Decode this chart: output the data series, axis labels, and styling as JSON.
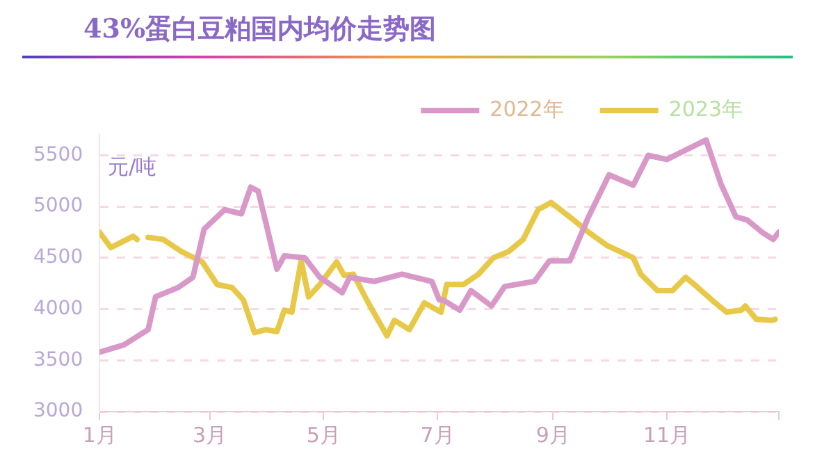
{
  "chart_data": {
    "type": "line",
    "title": "43%蛋白豆粕国内均价走势图",
    "ylabel": "元/吨",
    "xlim": [
      "--01-01",
      "--12-31"
    ],
    "xticks": [
      {
        "value": "--01-01",
        "label": "1月"
      },
      {
        "value": "--03-01",
        "label": "3月"
      },
      {
        "value": "--05-01",
        "label": "5月"
      },
      {
        "value": "--07-01",
        "label": "7月"
      },
      {
        "value": "--09-01",
        "label": "9月"
      },
      {
        "value": "--11-01",
        "label": "11月"
      },
      {
        "value": "--12-31",
        "label": null
      }
    ],
    "ylim": [
      3000,
      5700
    ],
    "yticks": [
      3000,
      3500,
      4000,
      4500,
      5000,
      5500
    ],
    "grid": "y",
    "legend": "top right",
    "marker": "none",
    "line_style": "solid",
    "series": [
      {
        "name": "2022年",
        "color": "#d898c8",
        "x": [
          "--01-01",
          "--01-14",
          "--01-27",
          "--01-31",
          "--02-12",
          "--02-20",
          "--02-26",
          "--03-09",
          "--03-18",
          "--03-23",
          "--03-27",
          "--03-31",
          "--04-06",
          "--04-10",
          "--04-21",
          "--04-29",
          "--05-11",
          "--05-15",
          "--05-28",
          "--06-12",
          "--06-28",
          "--07-02",
          "--07-04",
          "--07-13",
          "--07-19",
          "--07-30",
          "--08-06",
          "--08-22",
          "--08-30",
          "--09-10",
          "--09-20",
          "--10-01",
          "--10-14",
          "--10-22",
          "--11-01",
          "--11-12",
          "--11-22",
          "--11-30",
          "--12-08",
          "--12-14",
          "--12-22",
          "--12-28",
          "--12-31"
        ],
        "values": [
          3580,
          3650,
          3800,
          4120,
          4210,
          4310,
          4780,
          4970,
          4930,
          5190,
          5150,
          4850,
          4390,
          4520,
          4500,
          4310,
          4160,
          4310,
          4270,
          4340,
          4270,
          4090,
          4090,
          3990,
          4180,
          4030,
          4220,
          4270,
          4470,
          4470,
          4900,
          5310,
          5210,
          5500,
          5460,
          5560,
          5650,
          5220,
          4900,
          4870,
          4750,
          4680,
          4750
        ]
      },
      {
        "name": "2023年",
        "color": "#e8c848",
        "x": [
          "--01-01",
          "--01-07",
          "--01-19",
          "--01-21",
          "--01-24",
          "--01-27",
          "--02-04",
          "--02-14",
          "--02-25",
          "--03-05",
          "--03-13",
          "--03-19",
          "--03-25",
          "--03-31",
          "--04-06",
          "--04-10",
          "--04-14",
          "--04-19",
          "--04-23",
          "--04-29",
          "--05-08",
          "--05-12",
          "--05-17",
          "--05-25",
          "--06-04",
          "--06-08",
          "--06-16",
          "--06-24",
          "--07-03",
          "--07-06",
          "--07-15",
          "--07-23",
          "--07-31",
          "--08-08",
          "--08-16",
          "--08-24",
          "--08-31",
          "--09-12",
          "--09-20",
          "--09-30",
          "--10-14",
          "--10-18",
          "--10-27",
          "--11-04",
          "--11-11",
          "--11-17",
          "--11-25",
          "--12-03",
          "--12-11",
          "--12-13",
          "--12-19",
          "--12-27",
          "--12-29"
        ],
        "values": [
          4750,
          4600,
          4710,
          4680,
          null,
          4700,
          4680,
          4560,
          4460,
          4240,
          4210,
          4090,
          3770,
          3800,
          3780,
          3990,
          3970,
          4470,
          4120,
          4240,
          4460,
          4330,
          4340,
          4060,
          3740,
          3890,
          3800,
          4060,
          3970,
          4240,
          4240,
          4340,
          4500,
          4560,
          4680,
          4970,
          5040,
          4870,
          4750,
          4620,
          4500,
          4340,
          4180,
          4180,
          4310,
          4220,
          4090,
          3970,
          3990,
          4030,
          3900,
          3890,
          3900
        ]
      }
    ]
  }
}
